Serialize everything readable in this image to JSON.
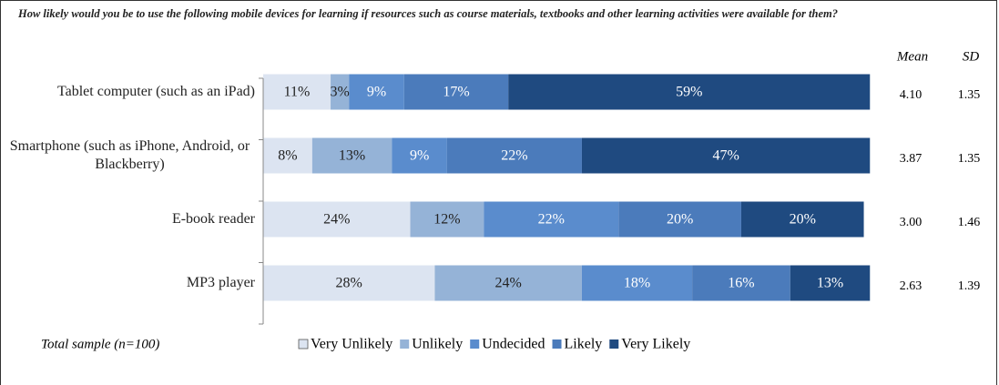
{
  "chart_data": {
    "type": "stacked_hbar",
    "title": "How likely would you be to use the following mobile devices for learning if resources such as course materials, textbooks and other learning activities were available for them?",
    "categories": [
      "Tablet computer (such as an iPad)",
      "Smartphone (such as iPhone, Android, or Blackberry)",
      "E-book reader",
      "MP3 player"
    ],
    "series": [
      {
        "name": "Very Unlikely",
        "color": "#dce4f1",
        "label_color": "#222222",
        "values": [
          11,
          8,
          24,
          28
        ],
        "value_labels": [
          "11%",
          "8%",
          "24%",
          "28%"
        ]
      },
      {
        "name": "Unlikely",
        "color": "#95b3d7",
        "label_color": "#222222",
        "values": [
          3,
          13,
          12,
          24
        ],
        "value_labels": [
          "3%",
          "13%",
          "12%",
          "24%"
        ]
      },
      {
        "name": "Undecided",
        "color": "#5a8ccd",
        "label_color": "#ffffff",
        "values": [
          9,
          9,
          22,
          18
        ],
        "value_labels": [
          "9%",
          "9%",
          "22%",
          "18%"
        ]
      },
      {
        "name": "Likely",
        "color": "#4b7bbb",
        "label_color": "#ffffff",
        "values": [
          17,
          22,
          20,
          16
        ],
        "value_labels": [
          "17%",
          "22%",
          "20%",
          "16%"
        ]
      },
      {
        "name": "Very Likely",
        "color": "#1f4a80",
        "label_color": "#ffffff",
        "values": [
          59,
          47,
          20,
          13
        ],
        "value_labels": [
          "59%",
          "47%",
          "20%",
          "13%"
        ]
      }
    ],
    "xlim": [
      0,
      100
    ],
    "stats_headers": [
      "Mean",
      "SD"
    ],
    "mean": [
      "4.10",
      "3.87",
      "3.00",
      "2.63"
    ],
    "sd": [
      "1.35",
      "1.35",
      "1.46",
      "1.39"
    ],
    "note": "Total sample (n=100)"
  }
}
